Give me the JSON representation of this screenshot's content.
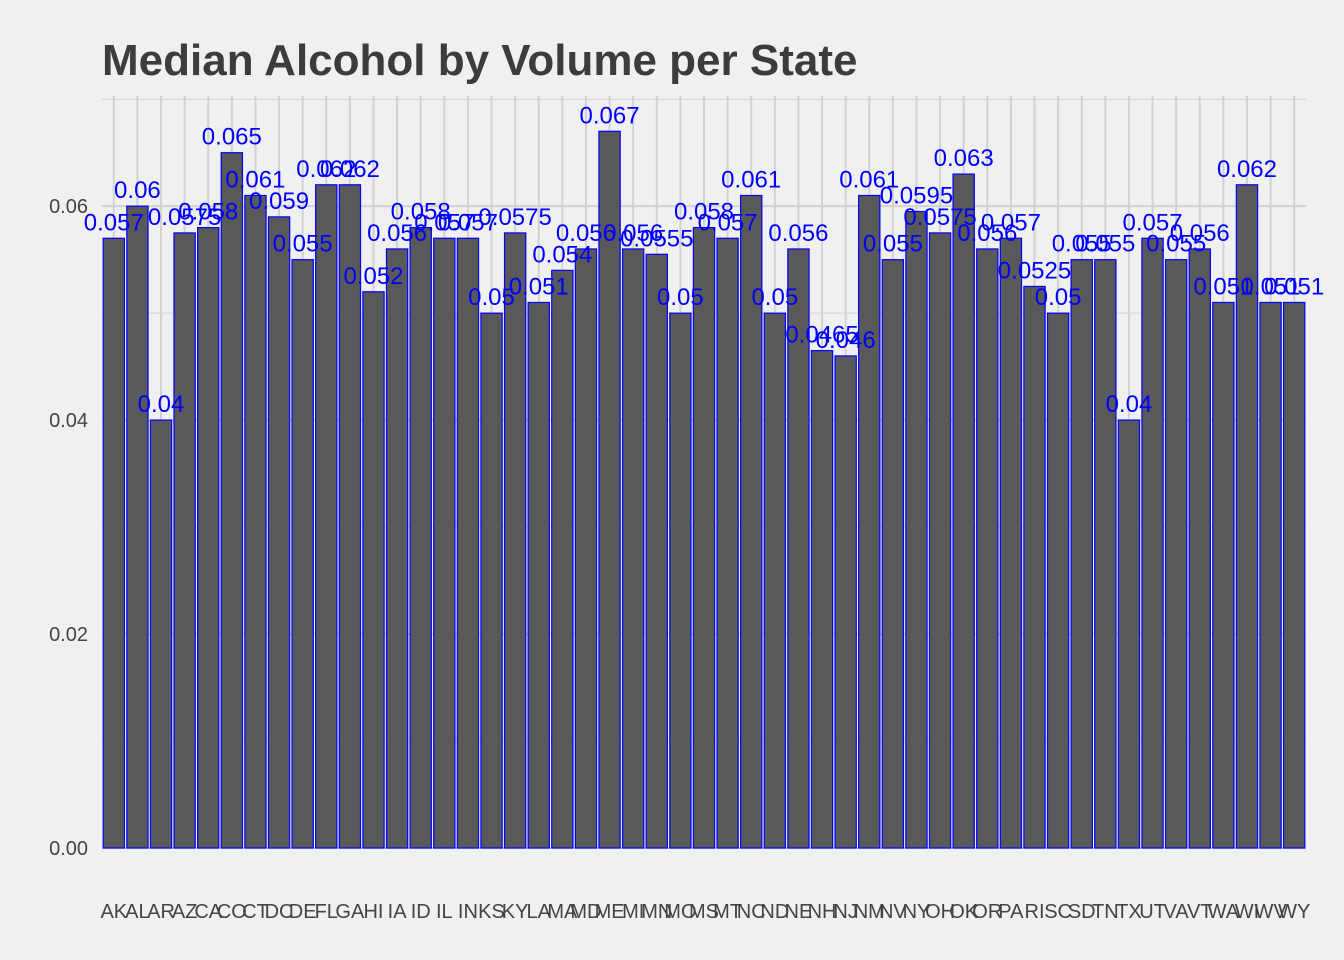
{
  "chart_data": {
    "type": "bar",
    "title": "Median Alcohol by Volume per State",
    "xlabel": "",
    "ylabel": "",
    "ylim": [
      0,
      0.0703
    ],
    "yticks": [
      "0.00",
      "0.02",
      "0.04",
      "0.06"
    ],
    "grid": true,
    "legend": "none",
    "categories": [
      "AK",
      "AL",
      "AR",
      "AZ",
      "CA",
      "CO",
      "CT",
      "DC",
      "DE",
      "FL",
      "GA",
      "HI",
      "IA",
      "ID",
      "IL",
      "IN",
      "KS",
      "KY",
      "LA",
      "MA",
      "MD",
      "ME",
      "MI",
      "MN",
      "MO",
      "MS",
      "MT",
      "NC",
      "ND",
      "NE",
      "NH",
      "NJ",
      "NM",
      "NV",
      "NY",
      "OH",
      "OK",
      "OR",
      "PA",
      "RI",
      "SC",
      "SD",
      "TN",
      "TX",
      "UT",
      "VA",
      "VT",
      "WA",
      "WI",
      "WV",
      "WY"
    ],
    "values": [
      0.057,
      0.06,
      0.04,
      0.0575,
      0.058,
      0.065,
      0.061,
      0.059,
      0.055,
      0.062,
      0.062,
      0.052,
      0.056,
      0.058,
      0.057,
      0.057,
      0.05,
      0.0575,
      0.051,
      0.054,
      0.056,
      0.067,
      0.056,
      0.0555,
      0.05,
      0.058,
      0.057,
      0.061,
      0.05,
      0.056,
      0.0465,
      0.046,
      0.061,
      0.055,
      0.0595,
      0.0575,
      0.063,
      0.056,
      0.057,
      0.0525,
      0.05,
      0.055,
      0.055,
      0.04,
      0.057,
      0.055,
      0.056,
      0.051,
      0.062,
      0.051,
      0.051
    ],
    "data_labels": [
      "0.057",
      "0.06",
      "0.04",
      "0.0575",
      "0.058",
      "0.065",
      "0.061",
      "0.059",
      "0.055",
      "0.062",
      "0.062",
      "0.052",
      "0.056",
      "0.058",
      "0.057",
      "0.057",
      "0.05",
      "0.0575",
      "0.051",
      "0.054",
      "0.056",
      "0.067",
      "0.056",
      "0.0555",
      "0.05",
      "0.058",
      "0.057",
      "0.061",
      "0.05",
      "0.056",
      "0.0465",
      "0.046",
      "0.061",
      "0.055",
      "0.0595",
      "0.0575",
      "0.063",
      "0.056",
      "0.057",
      "0.0525",
      "0.05",
      "0.055",
      "0.055",
      "0.04",
      "0.057",
      "0.055",
      "0.056",
      "0.051",
      "0.062",
      "0.051",
      "0.051"
    ],
    "colors": {
      "bar_fill": "#595959",
      "bar_outline": "#0000ff",
      "label": "#0000ff",
      "grid": "#d2d2d2",
      "background": "#f0f0f0"
    }
  }
}
